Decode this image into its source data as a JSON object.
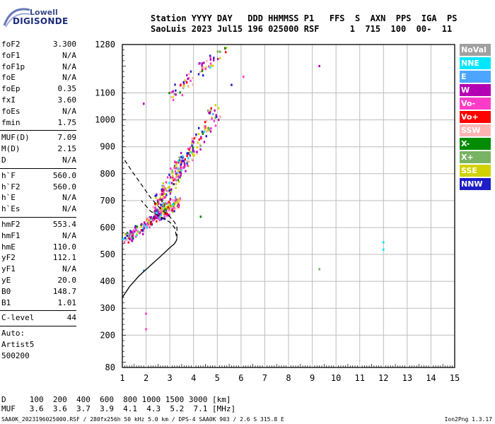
{
  "logo": {
    "brand_line1": "Lowell",
    "brand_line2": "DIGISONDE"
  },
  "header": {
    "line1": "Station YYYY DAY   DDD HHMMSS P1   FFS  S  AXN  PPS  IGA  PS",
    "line2": "SaoLuis 2023 Jul15 196 025000 RSF      1  715  100  00-  11"
  },
  "params": {
    "group1": [
      {
        "key": "foF2",
        "value": "3.300"
      },
      {
        "key": "foF1",
        "value": "N/A"
      },
      {
        "key": "foF1p",
        "value": "N/A"
      },
      {
        "key": "foE",
        "value": "N/A"
      },
      {
        "key": "foEp",
        "value": "0.35"
      },
      {
        "key": "fxI",
        "value": "3.60"
      },
      {
        "key": "foEs",
        "value": "N/A"
      },
      {
        "key": "fmin",
        "value": "1.75"
      }
    ],
    "group2": [
      {
        "key": "MUF(D)",
        "value": "7.09"
      },
      {
        "key": "M(D)",
        "value": "2.15"
      },
      {
        "key": "D",
        "value": "N/A"
      }
    ],
    "group3": [
      {
        "key": "h`F",
        "value": "560.0"
      },
      {
        "key": "h`F2",
        "value": "560.0"
      },
      {
        "key": "h`E",
        "value": "N/A"
      },
      {
        "key": "h`Es",
        "value": "N/A"
      }
    ],
    "group4": [
      {
        "key": "hmF2",
        "value": "553.4"
      },
      {
        "key": "hmF1",
        "value": "N/A"
      },
      {
        "key": "hmE",
        "value": "110.0"
      },
      {
        "key": "yF2",
        "value": "112.1"
      },
      {
        "key": "yF1",
        "value": "N/A"
      },
      {
        "key": "yE",
        "value": "20.0"
      },
      {
        "key": "B0",
        "value": "148.7"
      },
      {
        "key": "B1",
        "value": "1.01"
      }
    ],
    "clevel": {
      "key": "C-level",
      "value": "44"
    },
    "auto": [
      "Auto:",
      "Artist5",
      "500200"
    ]
  },
  "legend": [
    {
      "label": "NoVal",
      "color": "#a0a0a0"
    },
    {
      "label": "NNE",
      "color": "#00e6ff"
    },
    {
      "label": "E",
      "color": "#4ca6ff"
    },
    {
      "label": "W",
      "color": "#b400b4"
    },
    {
      "label": "Vo-",
      "color": "#ff3cc8"
    },
    {
      "label": "Vo+",
      "color": "#ff0000"
    },
    {
      "label": "SSW",
      "color": "#ffb4b4"
    },
    {
      "label": "X-",
      "color": "#008c00"
    },
    {
      "label": "X+",
      "color": "#78b464"
    },
    {
      "label": "SSE",
      "color": "#d2d200"
    },
    {
      "label": "NNW",
      "color": "#1e1ec8"
    }
  ],
  "bottom": {
    "row1": "D     100  200  400  600  800 1000 1500 3000 [km]",
    "row2": "MUF   3.6  3.6  3.7  3.9  4.1  4.3  5.2  7.1 [MHz]"
  },
  "footer": "SAA0K_2023196025000.RSF / 280fx256h 50 kHz 5.0 km / DPS-4 SAA0K 903 / 2.6 S 315.8 E",
  "version": "Ion2Png 1.3.17",
  "chart_data": {
    "type": "scatter",
    "xlim": [
      1,
      15
    ],
    "ylim": [
      80,
      1280
    ],
    "x_ticks": [
      1,
      2,
      3,
      4,
      5,
      6,
      7,
      8,
      9,
      10,
      11,
      12,
      13,
      14,
      15
    ],
    "y_ticks": [
      80,
      200,
      300,
      400,
      500,
      600,
      700,
      800,
      900,
      1000,
      1100,
      1280
    ],
    "grid": true,
    "clusters": [
      {
        "x": [
          1.2,
          3.4
        ],
        "y": [
          560,
          700
        ],
        "points": 260
      },
      {
        "x": [
          2.3,
          3.6
        ],
        "y": [
          650,
          860
        ],
        "points": 150
      },
      {
        "x": [
          3.4,
          5.0
        ],
        "y": [
          800,
          1040
        ],
        "points": 110
      },
      {
        "x": [
          3.0,
          5.5
        ],
        "y": [
          1090,
          1270
        ],
        "points": 70
      }
    ],
    "isolated_points": [
      {
        "x": 9.3,
        "y": 1200,
        "color": "#b400b4"
      },
      {
        "x": 12.0,
        "y": 545,
        "color": "#00e6ff"
      },
      {
        "x": 12.0,
        "y": 518,
        "color": "#00e6ff"
      },
      {
        "x": 9.3,
        "y": 445,
        "color": "#78b464"
      },
      {
        "x": 1.9,
        "y": 440,
        "color": "#4ca6ff"
      },
      {
        "x": 2.0,
        "y": 280,
        "color": "#ff3cc8"
      },
      {
        "x": 2.0,
        "y": 222,
        "color": "#ff3cc8"
      },
      {
        "x": 4.3,
        "y": 640,
        "color": "#008c00"
      },
      {
        "x": 1.9,
        "y": 1060,
        "color": "#b400b4"
      },
      {
        "x": 5.6,
        "y": 1130,
        "color": "#1e1ec8"
      },
      {
        "x": 6.1,
        "y": 1160,
        "color": "#ff3cc8"
      }
    ],
    "profile_solid": {
      "x": [
        1.0,
        1.3,
        1.7,
        2.2,
        2.7,
        3.0,
        3.2,
        3.28,
        3.3
      ],
      "y": [
        340,
        380,
        420,
        460,
        500,
        525,
        540,
        552,
        560
      ]
    },
    "profile_dashed": {
      "x": [
        1.1,
        1.4,
        1.8,
        2.2,
        2.6,
        3.0,
        3.2,
        3.3,
        3.3,
        3.3,
        3.2,
        3.0,
        2.6,
        2.2,
        1.8
      ],
      "y": [
        850,
        810,
        760,
        710,
        670,
        640,
        620,
        600,
        580,
        560,
        600,
        620,
        640,
        660,
        700
      ]
    }
  }
}
